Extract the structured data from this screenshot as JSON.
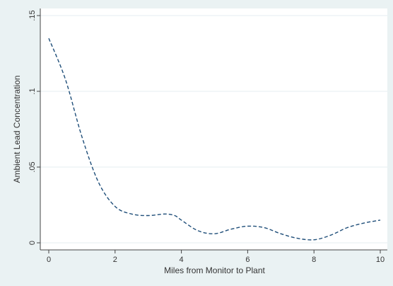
{
  "chart_data": {
    "type": "line",
    "title": "",
    "xlabel": "Miles from Monitor to Plant",
    "ylabel": "Ambient Lead Concentration",
    "xlim": [
      0,
      10
    ],
    "ylim": [
      0,
      0.15
    ],
    "x_ticks": [
      0,
      2,
      4,
      6,
      8,
      10
    ],
    "x_tick_labels": [
      "0",
      "2",
      "4",
      "6",
      "8",
      "10"
    ],
    "y_ticks": [
      0,
      0.05,
      0.1,
      0.15
    ],
    "y_tick_labels": [
      "0",
      ".05",
      ".1",
      ".15"
    ],
    "grid": true,
    "legend": "none",
    "colors": {
      "background": "#eaf2f3",
      "plot_area": "#ffffff",
      "line": "#1f4e79",
      "grid": "#e6eef0",
      "axis": "#444444"
    },
    "series": [
      {
        "line_style": "dashed",
        "x": [
          0,
          0.5,
          1,
          1.5,
          2,
          2.5,
          3,
          3.5,
          3.8,
          4,
          4.5,
          5,
          5.5,
          6,
          6.5,
          7,
          7.5,
          8,
          8.5,
          9,
          9.5,
          10
        ],
        "values": [
          0.135,
          0.108,
          0.07,
          0.04,
          0.024,
          0.019,
          0.018,
          0.019,
          0.018,
          0.015,
          0.008,
          0.006,
          0.009,
          0.011,
          0.01,
          0.006,
          0.003,
          0.002,
          0.005,
          0.01,
          0.013,
          0.015
        ]
      }
    ]
  }
}
